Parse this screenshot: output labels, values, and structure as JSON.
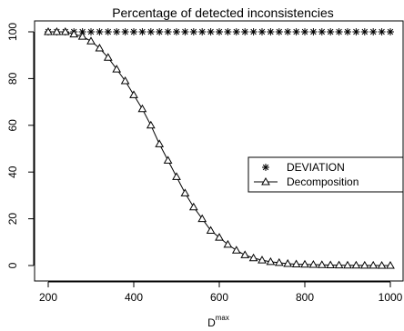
{
  "chart_data": {
    "type": "line",
    "title": "Percentage of detected inconsistencies",
    "xlabel": "D",
    "xlabel_superscript": "max",
    "ylabel": "",
    "xlim": [
      200,
      1000
    ],
    "ylim": [
      0,
      100
    ],
    "x_ticks": [
      "200",
      "400",
      "600",
      "800",
      "1000"
    ],
    "y_ticks": [
      "0",
      "20",
      "40",
      "60",
      "80",
      "100"
    ],
    "grid": false,
    "legend_position": "right",
    "x": [
      200,
      220,
      240,
      260,
      280,
      300,
      320,
      340,
      360,
      380,
      400,
      420,
      440,
      460,
      480,
      500,
      520,
      540,
      560,
      580,
      600,
      620,
      640,
      660,
      680,
      700,
      720,
      740,
      760,
      780,
      800,
      820,
      840,
      860,
      880,
      900,
      920,
      940,
      960,
      980,
      1000
    ],
    "series": [
      {
        "name": "DEVIATION",
        "marker": "asterisk",
        "line": false,
        "values": [
          100,
          100,
          100,
          100,
          100,
          100,
          100,
          100,
          100,
          100,
          100,
          100,
          100,
          100,
          100,
          100,
          100,
          100,
          100,
          100,
          100,
          100,
          100,
          100,
          100,
          100,
          100,
          100,
          100,
          100,
          100,
          100,
          100,
          100,
          100,
          100,
          100,
          100,
          100,
          100,
          100
        ]
      },
      {
        "name": "Decomposition",
        "marker": "triangle",
        "line": true,
        "values": [
          100,
          100,
          100,
          99,
          98,
          96,
          93,
          89,
          84,
          79,
          73,
          67,
          60,
          52,
          45,
          38,
          31,
          25,
          20,
          15,
          12,
          9,
          6.5,
          4.5,
          3.2,
          2.3,
          1.6,
          1.2,
          0.8,
          0.6,
          0.5,
          0.4,
          0.3,
          0.2,
          0.15,
          0.1,
          0.1,
          0.05,
          0.05,
          0,
          0
        ]
      }
    ]
  }
}
